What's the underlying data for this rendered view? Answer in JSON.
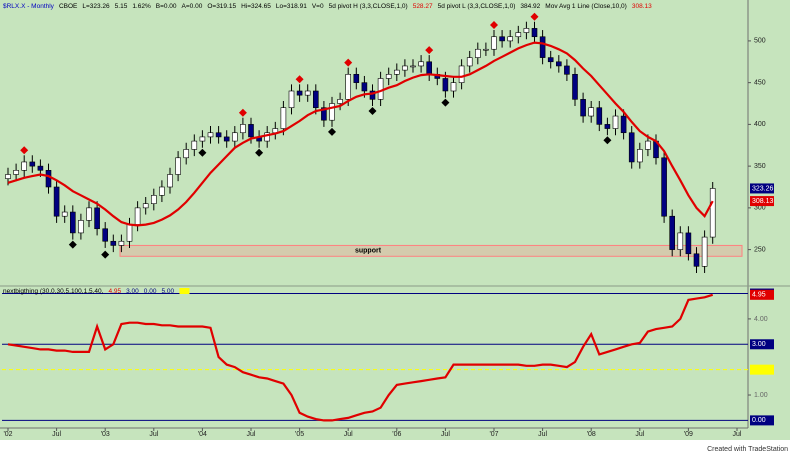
{
  "chart_data": [
    {
      "type": "candlestick",
      "header": [
        {
          "text": "$RLX.X - Monthly",
          "color": "#0000c0"
        },
        {
          "text": "CBOE",
          "color": "#000000"
        },
        {
          "text": "L=323.26",
          "color": "#000000"
        },
        {
          "text": "5.15",
          "color": "#000000"
        },
        {
          "text": "1.62%",
          "color": "#000000"
        },
        {
          "text": "B=0.00",
          "color": "#000000"
        },
        {
          "text": "A=0.00",
          "color": "#000000"
        },
        {
          "text": "O=319.15",
          "color": "#000000"
        },
        {
          "text": "Hi=324.65",
          "color": "#000000"
        },
        {
          "text": "Lo=318.91",
          "color": "#000000"
        },
        {
          "text": "V=0",
          "color": "#000000"
        },
        {
          "text": "5d pivot H (3,3,CLOSE,1,0)",
          "color": "#000000"
        },
        {
          "text": "528.27",
          "color": "#e00000"
        },
        {
          "text": "5d pivot L (3,3,CLOSE,1,0)",
          "color": "#000000"
        },
        {
          "text": "384.92",
          "color": "#000000"
        },
        {
          "text": "Mov Avg 1 Line (Close,10,0)",
          "color": "#000000"
        }
      ],
      "categories": [
        "'02",
        null,
        null,
        null,
        null,
        null,
        "Jul",
        null,
        null,
        null,
        null,
        null,
        "'03",
        null,
        null,
        null,
        null,
        null,
        "Jul",
        null,
        null,
        null,
        null,
        null,
        "'04",
        null,
        null,
        null,
        null,
        null,
        "Jul",
        null,
        null,
        null,
        null,
        null,
        "'05",
        null,
        null,
        null,
        null,
        null,
        "Jul",
        null,
        null,
        null,
        null,
        null,
        "'06",
        null,
        null,
        null,
        null,
        null,
        "Jul",
        null,
        null,
        null,
        null,
        null,
        "'07",
        null,
        null,
        null,
        null,
        null,
        "Jul",
        null,
        null,
        null,
        null,
        null,
        "'08",
        null,
        null,
        null,
        null,
        null,
        "Jul",
        null,
        null,
        null,
        null,
        null,
        "'09",
        null,
        null,
        null,
        null,
        null,
        "Jul"
      ],
      "open": [
        335,
        340,
        345,
        355,
        350,
        345,
        325,
        290,
        295,
        270,
        285,
        300,
        275,
        260,
        255,
        260,
        280,
        300,
        305,
        315,
        325,
        340,
        360,
        370,
        380,
        385,
        390,
        385,
        380,
        390,
        400,
        385,
        380,
        390,
        395,
        420,
        440,
        435,
        440,
        420,
        405,
        425,
        430,
        460,
        450,
        440,
        430,
        455,
        460,
        465,
        470,
        470,
        475,
        460,
        455,
        440,
        450,
        470,
        480,
        490,
        490,
        505,
        500,
        505,
        510,
        515,
        505,
        480,
        475,
        470,
        460,
        430,
        410,
        420,
        400,
        395,
        410,
        390,
        355,
        370,
        380,
        360,
        290,
        250,
        270,
        245,
        230,
        265,
        null,
        null,
        null
      ],
      "high": [
        348,
        353,
        363,
        363,
        358,
        353,
        333,
        303,
        303,
        293,
        308,
        308,
        283,
        268,
        268,
        288,
        308,
        313,
        323,
        333,
        348,
        368,
        378,
        388,
        393,
        398,
        398,
        393,
        398,
        408,
        408,
        393,
        398,
        403,
        428,
        448,
        448,
        448,
        448,
        428,
        433,
        438,
        468,
        468,
        458,
        448,
        463,
        468,
        473,
        478,
        478,
        483,
        483,
        468,
        463,
        458,
        478,
        488,
        498,
        498,
        513,
        513,
        513,
        518,
        523,
        523,
        513,
        488,
        483,
        478,
        468,
        438,
        428,
        428,
        408,
        418,
        418,
        398,
        378,
        388,
        388,
        368,
        298,
        278,
        278,
        253,
        273,
        331,
        null,
        null,
        null
      ],
      "low": [
        327,
        332,
        337,
        342,
        337,
        317,
        282,
        282,
        262,
        262,
        277,
        267,
        252,
        247,
        247,
        252,
        272,
        292,
        297,
        307,
        317,
        332,
        352,
        362,
        372,
        377,
        377,
        372,
        372,
        382,
        377,
        372,
        372,
        382,
        387,
        412,
        427,
        427,
        412,
        397,
        397,
        417,
        422,
        442,
        432,
        422,
        422,
        447,
        452,
        457,
        462,
        462,
        452,
        447,
        432,
        432,
        442,
        462,
        472,
        482,
        482,
        492,
        492,
        497,
        502,
        497,
        472,
        467,
        462,
        452,
        422,
        402,
        402,
        392,
        387,
        387,
        382,
        347,
        347,
        362,
        352,
        282,
        242,
        242,
        237,
        222,
        222,
        257,
        null,
        null,
        null
      ],
      "close": [
        340,
        345,
        355,
        350,
        345,
        325,
        290,
        295,
        270,
        285,
        300,
        275,
        260,
        255,
        260,
        280,
        300,
        305,
        315,
        325,
        340,
        360,
        370,
        380,
        385,
        390,
        385,
        380,
        390,
        400,
        385,
        380,
        390,
        395,
        420,
        440,
        435,
        440,
        420,
        405,
        425,
        430,
        460,
        450,
        440,
        430,
        455,
        460,
        465,
        470,
        470,
        475,
        460,
        455,
        440,
        450,
        470,
        480,
        490,
        490,
        505,
        500,
        505,
        510,
        515,
        505,
        480,
        475,
        470,
        460,
        430,
        410,
        420,
        400,
        395,
        410,
        390,
        355,
        370,
        380,
        360,
        290,
        250,
        270,
        245,
        230,
        265,
        323.26,
        null,
        null,
        null
      ],
      "up_color": "#ffffff",
      "down_color": "#000080",
      "moving_average": {
        "color": "#e00000",
        "values": [
          330,
          333,
          336,
          338,
          340,
          338,
          333,
          327,
          320,
          315,
          310,
          305,
          298,
          290,
          283,
          280,
          279,
          280,
          282,
          286,
          291,
          298,
          307,
          318,
          330,
          342,
          352,
          362,
          372,
          378,
          383,
          385,
          387,
          389,
          392,
          398,
          404,
          411,
          416,
          418,
          420,
          422,
          428,
          433,
          436,
          437,
          440,
          444,
          447,
          452,
          456,
          459,
          460,
          459,
          458,
          457,
          457,
          460,
          465,
          470,
          476,
          481,
          486,
          491,
          495,
          498,
          497,
          494,
          490,
          485,
          477,
          467,
          458,
          447,
          436,
          425,
          415,
          403,
          392,
          385,
          380,
          368,
          350,
          333,
          315,
          300,
          290,
          308.13,
          null,
          null,
          null
        ]
      },
      "pivot_highs": {
        "color": "#e00000",
        "values": [
          null,
          null,
          369,
          null,
          null,
          null,
          null,
          null,
          null,
          null,
          null,
          null,
          null,
          null,
          null,
          null,
          null,
          null,
          null,
          null,
          null,
          null,
          null,
          null,
          null,
          null,
          null,
          null,
          null,
          414,
          null,
          null,
          null,
          null,
          null,
          null,
          454,
          null,
          null,
          null,
          null,
          null,
          474,
          null,
          null,
          null,
          null,
          null,
          null,
          null,
          null,
          null,
          489,
          null,
          null,
          null,
          null,
          null,
          null,
          null,
          519,
          null,
          null,
          null,
          null,
          529,
          null,
          null,
          null,
          null,
          null,
          null,
          null,
          null,
          null,
          null,
          null,
          null,
          null,
          null,
          null,
          null,
          null,
          null,
          null,
          null,
          null,
          null,
          null,
          null,
          null
        ]
      },
      "pivot_lows": {
        "color": "#000000",
        "values": [
          null,
          null,
          null,
          null,
          null,
          null,
          null,
          null,
          256,
          null,
          null,
          null,
          244,
          null,
          null,
          null,
          null,
          null,
          null,
          null,
          null,
          null,
          null,
          null,
          366,
          null,
          null,
          null,
          null,
          null,
          null,
          366,
          null,
          null,
          null,
          null,
          null,
          null,
          null,
          null,
          391,
          null,
          null,
          null,
          null,
          416,
          null,
          null,
          null,
          null,
          null,
          null,
          null,
          null,
          426,
          null,
          null,
          null,
          null,
          null,
          null,
          null,
          null,
          null,
          null,
          null,
          null,
          null,
          null,
          null,
          null,
          null,
          null,
          null,
          381,
          null,
          null,
          null,
          null,
          null,
          null,
          null,
          null,
          null,
          null,
          null,
          null,
          null,
          null,
          null,
          null
        ]
      },
      "support": {
        "label": "support",
        "low": 242,
        "high": 255,
        "color": "#ff8080"
      },
      "ylim": [
        210,
        549
      ],
      "yticks": [
        250,
        300,
        350,
        400,
        450,
        500
      ]
    },
    {
      "type": "line",
      "title": "nextbigthing (30,0,30,5,100,1.5,40,",
      "color": "#e00000",
      "values": [
        3.0,
        2.95,
        2.9,
        2.85,
        2.8,
        2.8,
        2.75,
        2.75,
        2.7,
        2.7,
        2.7,
        3.7,
        2.8,
        3.0,
        3.8,
        3.85,
        3.85,
        3.8,
        3.8,
        3.75,
        3.75,
        3.7,
        3.7,
        3.7,
        3.7,
        3.65,
        2.5,
        2.2,
        2.1,
        1.9,
        1.8,
        1.7,
        1.65,
        1.55,
        1.45,
        1.0,
        0.3,
        0.15,
        0.05,
        0.0,
        0.0,
        0.05,
        0.1,
        0.2,
        0.3,
        0.35,
        0.5,
        1.0,
        1.4,
        1.45,
        1.5,
        1.55,
        1.6,
        1.65,
        1.7,
        2.2,
        2.2,
        2.2,
        2.2,
        2.2,
        2.2,
        2.2,
        2.2,
        2.2,
        2.15,
        2.15,
        2.2,
        2.2,
        2.15,
        2.1,
        2.3,
        2.9,
        3.4,
        2.6,
        2.7,
        2.8,
        2.9,
        3.0,
        3.05,
        3.5,
        3.6,
        3.65,
        3.7,
        4.0,
        4.75,
        4.8,
        4.85,
        4.95,
        null,
        null,
        null
      ],
      "levels": [
        {
          "value": 3,
          "label": "3.00",
          "color": "#000080"
        },
        {
          "value": 0,
          "label": "0.00",
          "color": "#000080"
        },
        {
          "value": 5,
          "label": "5.00",
          "color": "#000080"
        },
        {
          "value": 2,
          "color": "#ffff00"
        }
      ],
      "ylim": [
        -0.3,
        5.1
      ],
      "yticks": [
        {
          "value": 4,
          "label": "4.00"
        },
        {
          "value": 1,
          "label": "1.00"
        }
      ]
    }
  ],
  "footer": "Created with TradeStation"
}
